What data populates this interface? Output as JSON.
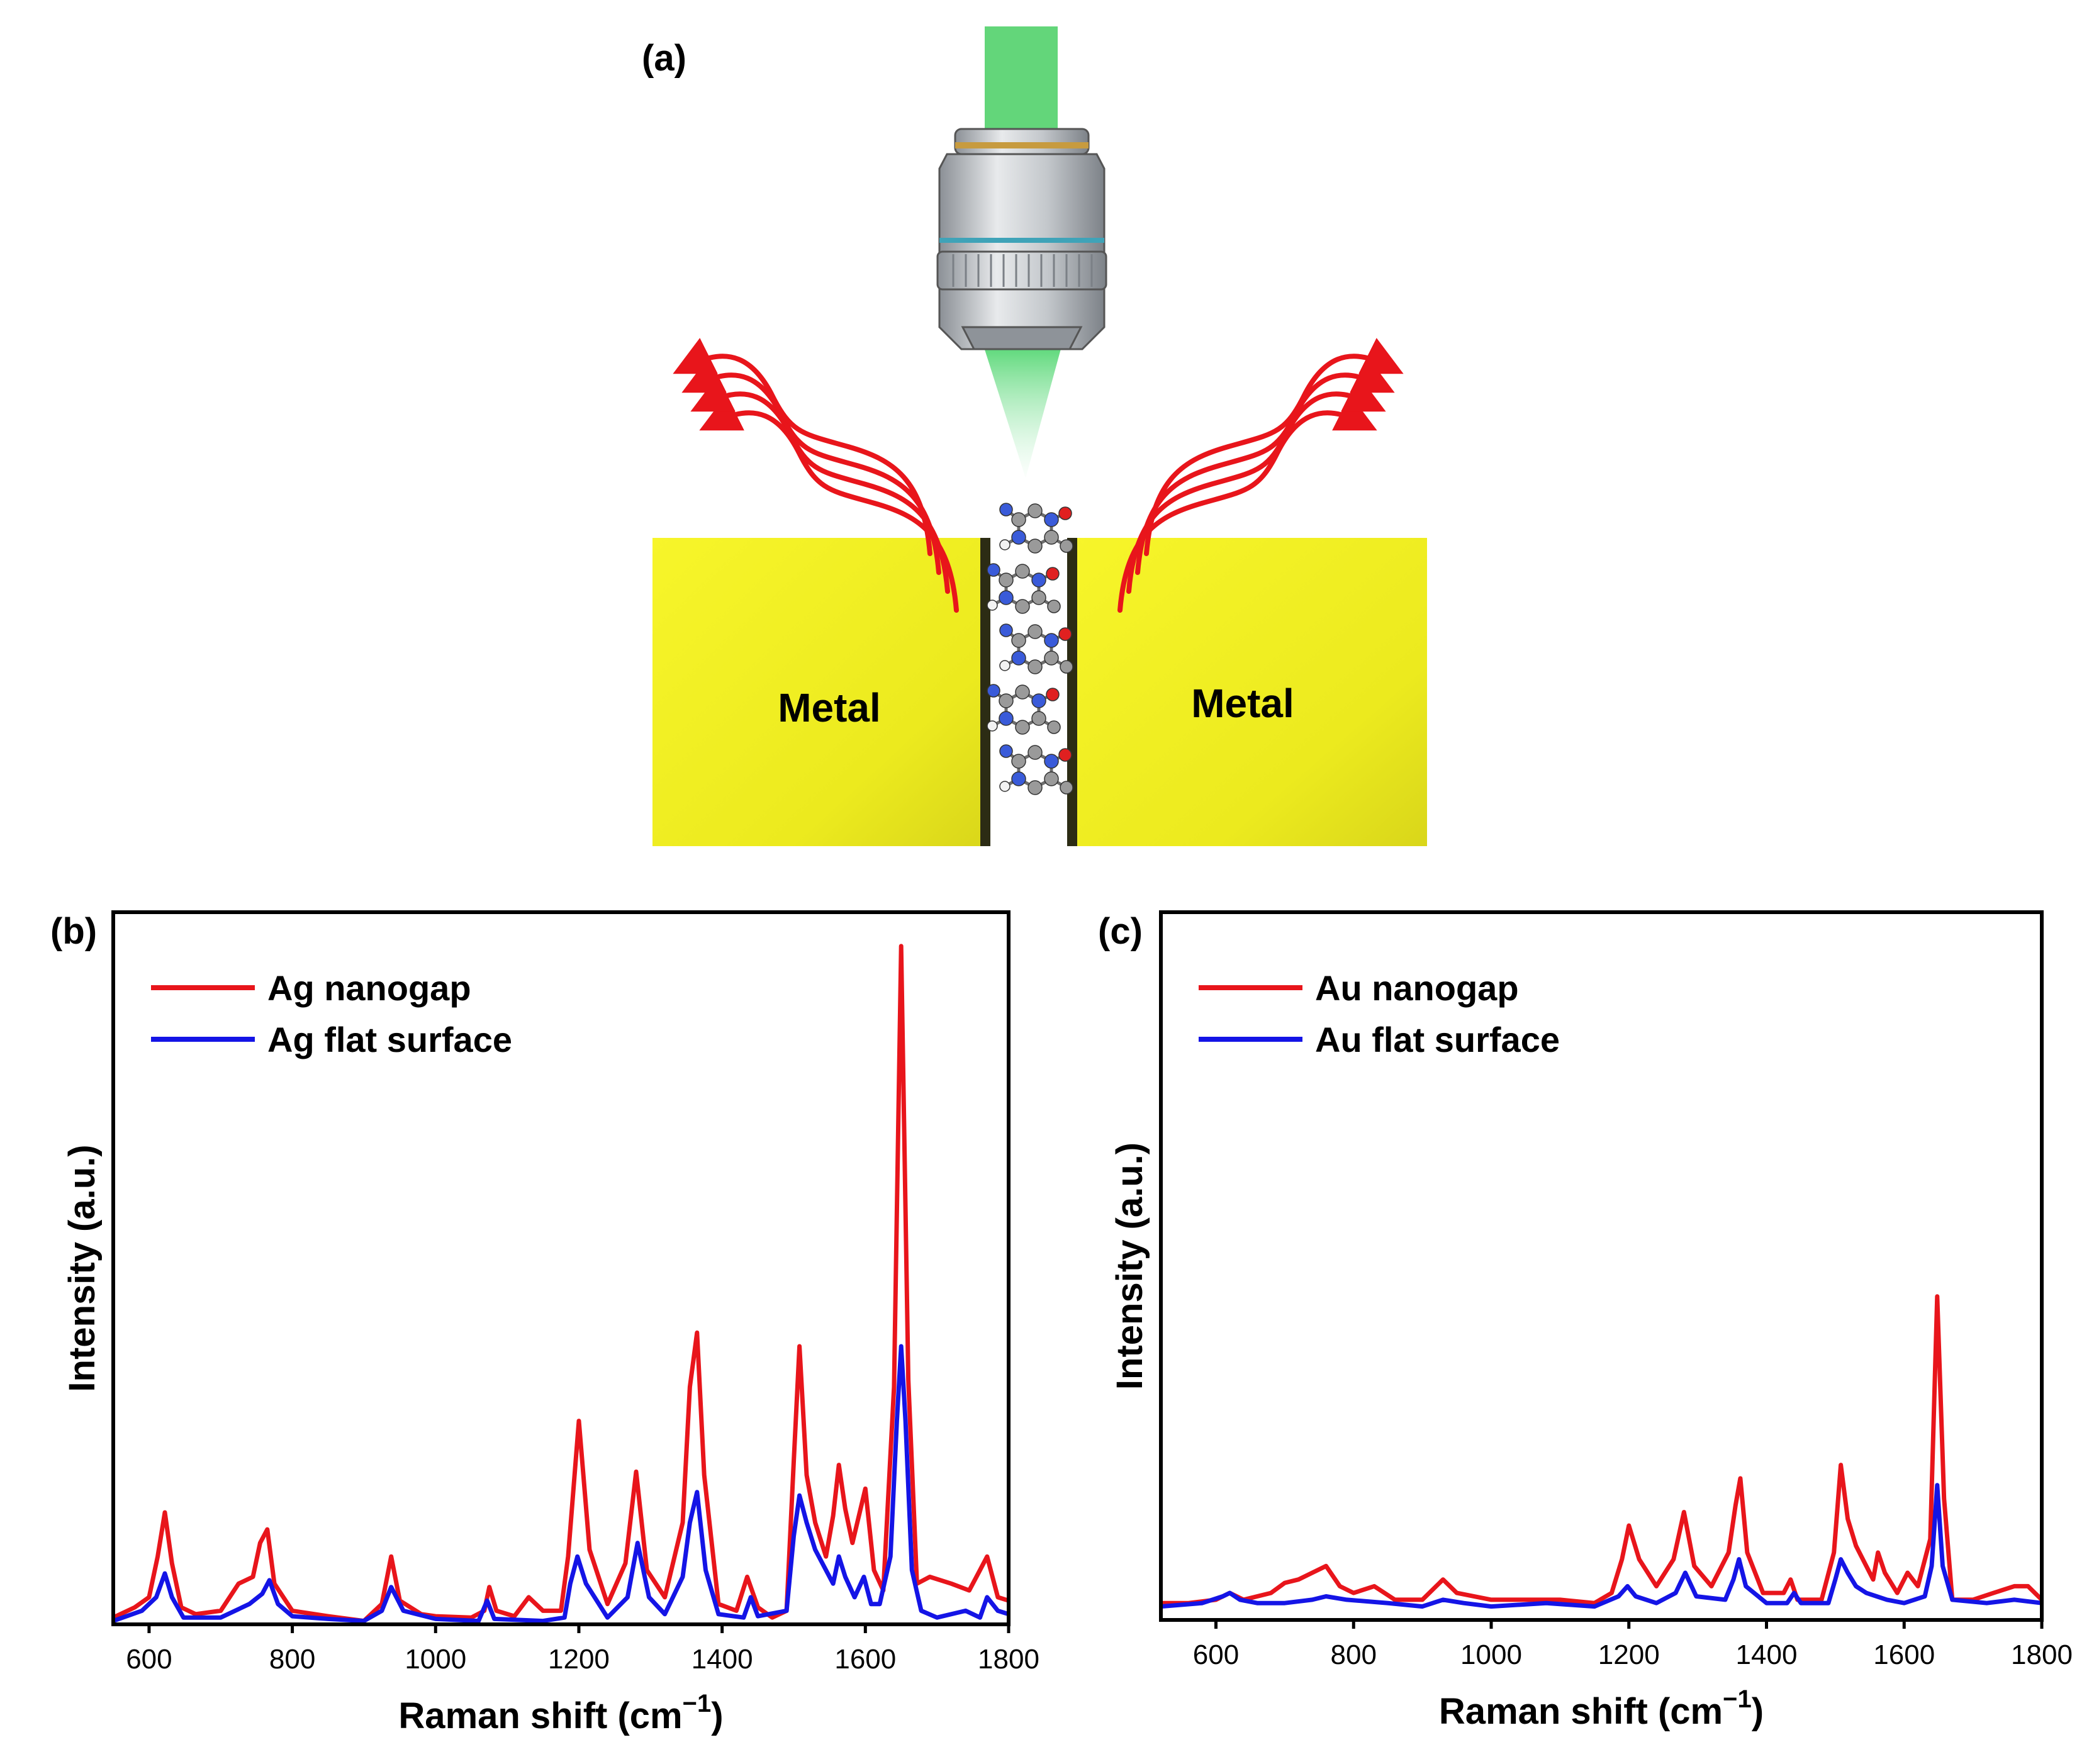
{
  "panel_a": {
    "label": "(a)",
    "metal_left": "Metal",
    "metal_right": "Metal",
    "colors": {
      "metal": "#f2f022",
      "laser": "#5fd97a",
      "scatter": "#e8151b",
      "objective": "#b9bdc2",
      "ring_gold": "#c79b3f",
      "ring_teal": "#3fa3b8"
    },
    "icons": [
      "microscope-objective-icon",
      "laser-beam-icon",
      "scattered-light-icon",
      "molecule-chain-icon"
    ]
  },
  "chart_data": [
    {
      "type": "line",
      "panel_label": "(b)",
      "title": "",
      "xlabel": "Raman shift (cm",
      "xlabel_sup": "−1",
      "xlabel_close": ")",
      "ylabel": "Intensity (a.u.)",
      "xlim": [
        550,
        1800
      ],
      "ylim": [
        0,
        1.05
      ],
      "xticks": [
        600,
        800,
        1000,
        1200,
        1400,
        1600,
        1800
      ],
      "grid": false,
      "legend_position": "top-left",
      "series": [
        {
          "name": "Ag nanogap",
          "color": "#e8151b",
          "x": [
            550,
            580,
            600,
            612,
            622,
            632,
            645,
            665,
            700,
            725,
            745,
            755,
            765,
            775,
            800,
            850,
            900,
            925,
            938,
            950,
            980,
            1000,
            1050,
            1068,
            1075,
            1085,
            1110,
            1130,
            1150,
            1175,
            1185,
            1200,
            1215,
            1240,
            1265,
            1280,
            1295,
            1320,
            1345,
            1355,
            1365,
            1375,
            1395,
            1420,
            1435,
            1450,
            1470,
            1490,
            1500,
            1508,
            1518,
            1530,
            1545,
            1555,
            1563,
            1572,
            1582,
            1600,
            1612,
            1625,
            1640,
            1650,
            1660,
            1672,
            1690,
            1720,
            1745,
            1760,
            1770,
            1785,
            1800
          ],
          "values": [
            0.01,
            0.025,
            0.04,
            0.1,
            0.165,
            0.09,
            0.025,
            0.015,
            0.02,
            0.06,
            0.07,
            0.12,
            0.14,
            0.06,
            0.02,
            0.012,
            0.005,
            0.03,
            0.1,
            0.035,
            0.015,
            0.012,
            0.01,
            0.02,
            0.055,
            0.02,
            0.012,
            0.04,
            0.02,
            0.02,
            0.1,
            0.3,
            0.11,
            0.03,
            0.09,
            0.225,
            0.08,
            0.04,
            0.15,
            0.35,
            0.43,
            0.22,
            0.03,
            0.02,
            0.07,
            0.025,
            0.01,
            0.02,
            0.24,
            0.41,
            0.22,
            0.15,
            0.1,
            0.16,
            0.235,
            0.17,
            0.12,
            0.2,
            0.08,
            0.05,
            0.35,
            1.0,
            0.36,
            0.06,
            0.07,
            0.06,
            0.05,
            0.08,
            0.1,
            0.04,
            0.035
          ]
        },
        {
          "name": "Ag flat surface",
          "color": "#1414e6",
          "x": [
            550,
            590,
            610,
            622,
            632,
            648,
            700,
            740,
            758,
            768,
            780,
            800,
            850,
            900,
            925,
            938,
            955,
            1000,
            1060,
            1072,
            1082,
            1150,
            1180,
            1188,
            1198,
            1210,
            1240,
            1268,
            1282,
            1298,
            1320,
            1345,
            1355,
            1365,
            1377,
            1395,
            1430,
            1440,
            1450,
            1490,
            1500,
            1508,
            1518,
            1530,
            1545,
            1555,
            1563,
            1572,
            1585,
            1598,
            1608,
            1620,
            1635,
            1644,
            1650,
            1656,
            1665,
            1678,
            1700,
            1740,
            1760,
            1770,
            1785,
            1800
          ],
          "values": [
            0.005,
            0.02,
            0.04,
            0.075,
            0.04,
            0.01,
            0.01,
            0.03,
            0.045,
            0.065,
            0.03,
            0.012,
            0.008,
            0.005,
            0.02,
            0.055,
            0.02,
            0.008,
            0.005,
            0.035,
            0.008,
            0.005,
            0.01,
            0.06,
            0.1,
            0.06,
            0.01,
            0.04,
            0.12,
            0.04,
            0.015,
            0.07,
            0.15,
            0.195,
            0.08,
            0.015,
            0.01,
            0.04,
            0.012,
            0.02,
            0.13,
            0.19,
            0.15,
            0.11,
            0.08,
            0.06,
            0.1,
            0.07,
            0.04,
            0.07,
            0.03,
            0.03,
            0.1,
            0.3,
            0.41,
            0.3,
            0.08,
            0.02,
            0.01,
            0.02,
            0.01,
            0.04,
            0.02,
            0.015
          ]
        }
      ]
    },
    {
      "type": "line",
      "panel_label": "(c)",
      "title": "",
      "xlabel": "Raman shift (cm",
      "xlabel_sup": "−1",
      "xlabel_close": ")",
      "ylabel": "Intensity (a.u.)",
      "xlim": [
        520,
        1800
      ],
      "ylim": [
        0,
        1.05
      ],
      "xticks": [
        600,
        800,
        1000,
        1200,
        1400,
        1600,
        1800
      ],
      "grid": false,
      "legend_position": "top-left",
      "series": [
        {
          "name": "Au nanogap",
          "color": "#e8151b",
          "x": [
            520,
            560,
            600,
            620,
            640,
            680,
            700,
            720,
            740,
            760,
            780,
            800,
            830,
            860,
            900,
            930,
            950,
            1000,
            1050,
            1100,
            1150,
            1175,
            1190,
            1200,
            1215,
            1240,
            1265,
            1280,
            1295,
            1320,
            1345,
            1355,
            1362,
            1372,
            1395,
            1425,
            1435,
            1445,
            1480,
            1498,
            1508,
            1518,
            1530,
            1545,
            1555,
            1562,
            1572,
            1590,
            1605,
            1620,
            1638,
            1648,
            1658,
            1670,
            1700,
            1730,
            1760,
            1780,
            1800
          ],
          "values": [
            0.025,
            0.025,
            0.03,
            0.04,
            0.03,
            0.04,
            0.055,
            0.06,
            0.07,
            0.08,
            0.05,
            0.04,
            0.05,
            0.03,
            0.03,
            0.06,
            0.04,
            0.03,
            0.03,
            0.03,
            0.025,
            0.04,
            0.09,
            0.14,
            0.09,
            0.05,
            0.09,
            0.16,
            0.08,
            0.05,
            0.1,
            0.17,
            0.21,
            0.1,
            0.04,
            0.04,
            0.06,
            0.03,
            0.03,
            0.1,
            0.23,
            0.15,
            0.11,
            0.08,
            0.06,
            0.1,
            0.07,
            0.04,
            0.07,
            0.05,
            0.12,
            0.48,
            0.18,
            0.03,
            0.03,
            0.04,
            0.05,
            0.05,
            0.03
          ]
        },
        {
          "name": "Au flat surface",
          "color": "#1414e6",
          "x": [
            520,
            580,
            610,
            620,
            635,
            660,
            700,
            740,
            760,
            790,
            850,
            900,
            930,
            960,
            1000,
            1080,
            1150,
            1185,
            1198,
            1210,
            1240,
            1268,
            1282,
            1298,
            1340,
            1352,
            1360,
            1370,
            1400,
            1430,
            1440,
            1450,
            1490,
            1500,
            1508,
            1518,
            1530,
            1545,
            1560,
            1575,
            1600,
            1630,
            1640,
            1648,
            1656,
            1670,
            1720,
            1760,
            1800
          ],
          "values": [
            0.02,
            0.025,
            0.035,
            0.04,
            0.03,
            0.025,
            0.025,
            0.03,
            0.035,
            0.03,
            0.025,
            0.02,
            0.03,
            0.025,
            0.02,
            0.025,
            0.02,
            0.035,
            0.05,
            0.035,
            0.025,
            0.04,
            0.07,
            0.035,
            0.03,
            0.06,
            0.09,
            0.05,
            0.025,
            0.025,
            0.04,
            0.025,
            0.025,
            0.06,
            0.09,
            0.07,
            0.05,
            0.04,
            0.035,
            0.03,
            0.025,
            0.035,
            0.08,
            0.2,
            0.08,
            0.03,
            0.025,
            0.03,
            0.025
          ]
        }
      ]
    }
  ]
}
